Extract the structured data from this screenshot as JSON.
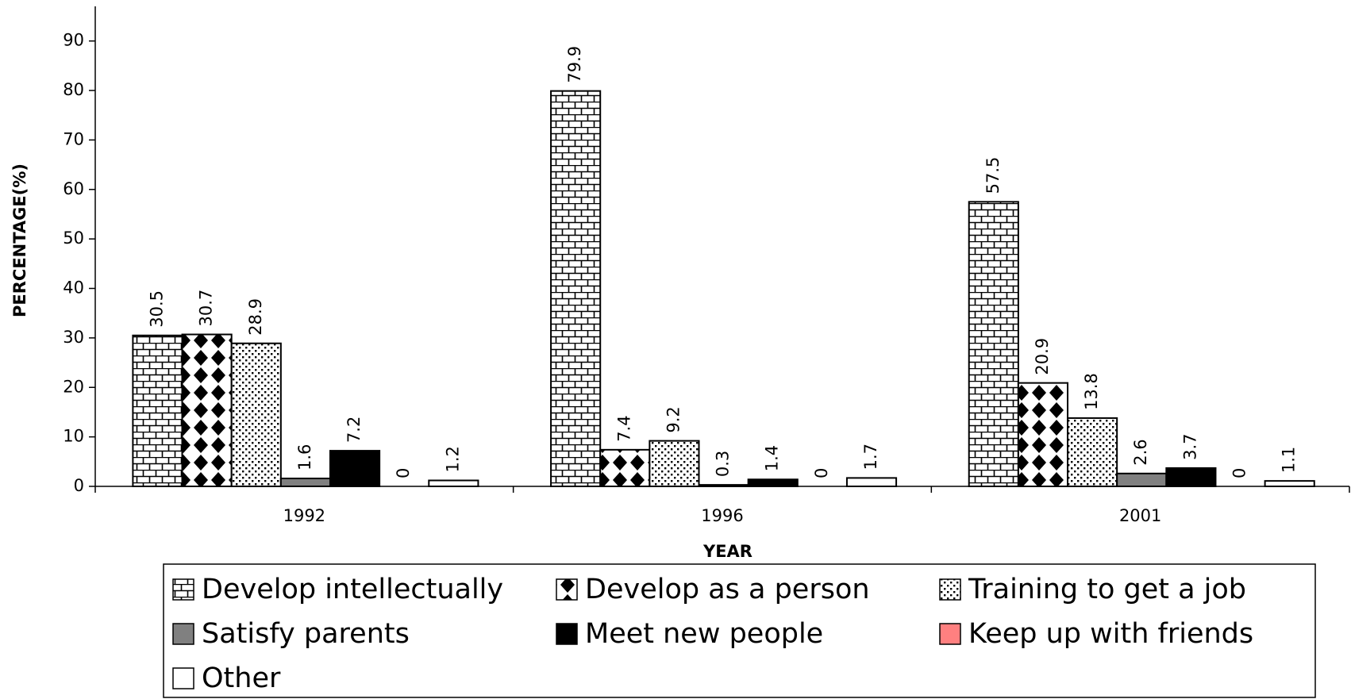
{
  "chart_data": {
    "type": "bar",
    "xlabel": "YEAR",
    "ylabel": "PERCENTAGE(%)",
    "categories": [
      "1992",
      "1996",
      "2001"
    ],
    "series": [
      {
        "name": "Develop intellectually",
        "color": "#ffffff",
        "pattern": "brick",
        "values": [
          30.5,
          79.9,
          57.5
        ]
      },
      {
        "name": "Develop as a person",
        "color": "#ffffff",
        "pattern": "diamond",
        "values": [
          30.7,
          7.4,
          20.9
        ]
      },
      {
        "name": "Training to get a job",
        "color": "#ffffff",
        "pattern": "dots",
        "values": [
          28.9,
          9.2,
          13.8
        ]
      },
      {
        "name": "Satisfy parents",
        "color": "#808080",
        "values": [
          1.6,
          0.3,
          2.6
        ]
      },
      {
        "name": "Meet new people",
        "color": "#000000",
        "values": [
          7.2,
          1.4,
          3.7
        ]
      },
      {
        "name": "Keep up with friends",
        "color": "#ff8080",
        "values": [
          0,
          0,
          0
        ]
      },
      {
        "name": "Other",
        "color": "#ffffff",
        "values": [
          1.2,
          1.7,
          1.1
        ]
      }
    ],
    "ylim": [
      0,
      97
    ],
    "yticks": [
      0,
      10,
      20,
      30,
      40,
      50,
      60,
      70,
      80,
      90
    ],
    "grid": false,
    "legend": "bottom"
  }
}
